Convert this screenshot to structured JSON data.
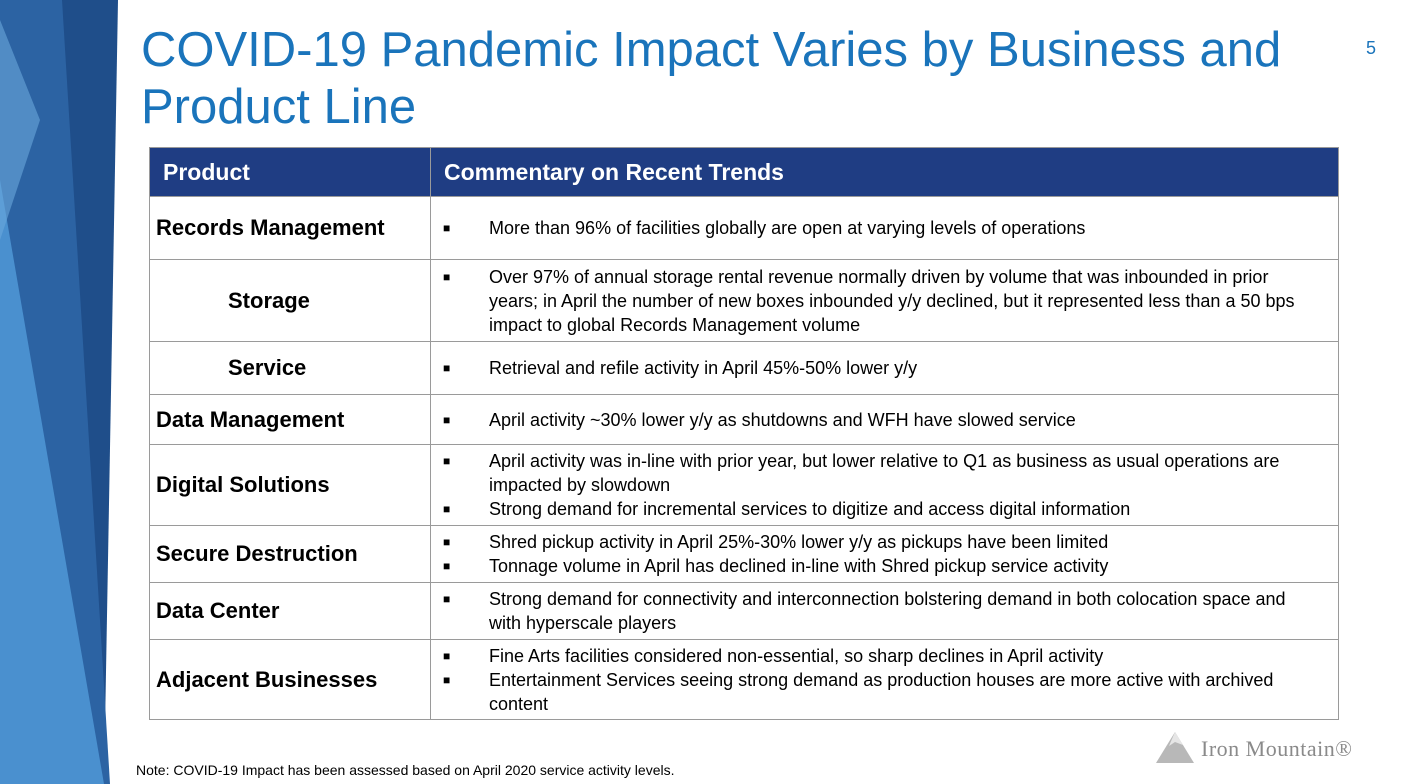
{
  "slide": {
    "title": "COVID-19 Pandemic Impact Varies by Business and Product Line",
    "page_number": "5",
    "note": "Note: COVID-19 Impact has been assessed based on April 2020 service activity levels.",
    "logo_text": "Iron Mountain®",
    "colors": {
      "title": "#1a74bb",
      "header_bg": "#1f3d83",
      "band_dark": "#1f4e8a",
      "band_light": "#4a90cf"
    }
  },
  "table": {
    "headers": [
      "Product",
      "Commentary on Recent Trends"
    ],
    "rows": [
      {
        "product": "Records Management",
        "bullets": [
          "More than 96% of facilities globally are open at varying levels of operations"
        ]
      },
      {
        "product": "Storage",
        "bullets": [
          "Over 97% of annual storage rental revenue normally driven by volume that was inbounded in prior years; in April the number of new boxes inbounded y/y declined, but it represented less than a 50 bps impact to global Records Management volume"
        ]
      },
      {
        "product": "Service",
        "bullets": [
          "Retrieval and refile activity in April 45%-50% lower y/y"
        ]
      },
      {
        "product": "Data Management",
        "bullets": [
          "April activity ~30% lower y/y as shutdowns and WFH have slowed service"
        ]
      },
      {
        "product": "Digital Solutions",
        "bullets": [
          "April activity was in-line with prior year, but lower relative to Q1 as business as usual operations are impacted by slowdown",
          "Strong demand for incremental services to digitize and access digital information"
        ]
      },
      {
        "product": "Secure Destruction",
        "bullets": [
          "Shred pickup activity in April 25%-30% lower y/y as pickups have been limited",
          "Tonnage volume in April has declined in-line with Shred pickup service activity"
        ]
      },
      {
        "product": "Data Center",
        "bullets": [
          "Strong demand for connectivity and interconnection bolstering demand in both colocation space and with hyperscale players"
        ]
      },
      {
        "product": "Adjacent Businesses",
        "bullets": [
          "Fine Arts facilities considered non-essential, so sharp declines in April activity",
          "Entertainment Services seeing strong demand as production houses are more active with archived content"
        ]
      }
    ]
  }
}
